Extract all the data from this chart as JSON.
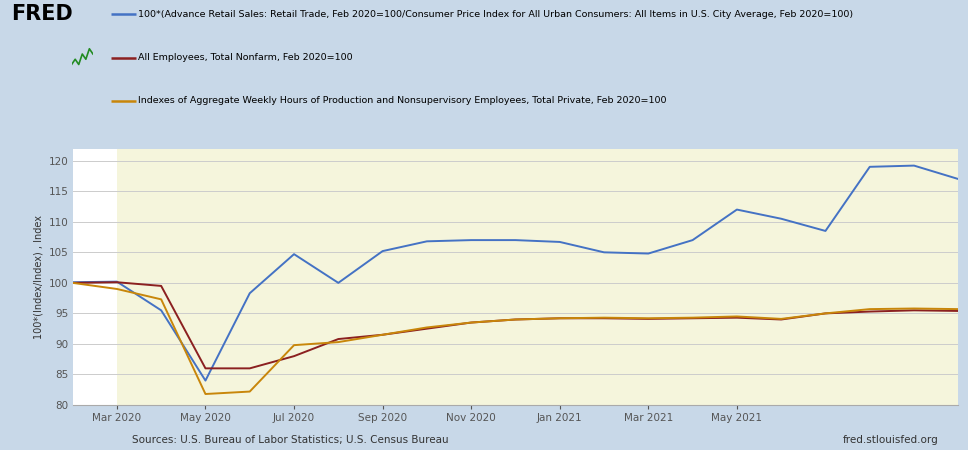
{
  "background_color": "#c8d8e8",
  "plot_bg_white": "#ffffff",
  "plot_bg_yellow": "#f5f5dc",
  "ylabel": "100*(Index/Index) , Index",
  "ylim": [
    80,
    122
  ],
  "yticks": [
    80,
    85,
    90,
    95,
    100,
    105,
    110,
    115,
    120
  ],
  "source_text": "Sources: U.S. Bureau of Labor Statistics; U.S. Census Bureau",
  "website_text": "fred.stlouisfed.org",
  "legend_line1": "100*(Advance Retail Sales: Retail Trade, Feb 2020=100/Consumer Price Index for All Urban Consumers: All Items in U.S. City Average, Feb 2020=100)",
  "legend_line2": "All Employees, Total Nonfarm, Feb 2020=100",
  "legend_line3": "Indexes of Aggregate Weekly Hours of Production and Nonsupervisory Employees, Total Private, Feb 2020=100",
  "line_colors": [
    "#4472c4",
    "#8b2020",
    "#c8860a"
  ],
  "x_tick_labels": [
    "Mar 2020",
    "May 2020",
    "Jul 2020",
    "Sep 2020",
    "Nov 2020",
    "Jan 2021",
    "Mar 2021",
    "May 2021"
  ],
  "xtick_positions": [
    1,
    3,
    5,
    7,
    9,
    11,
    13,
    15
  ],
  "blue_series": [
    100.1,
    100.2,
    95.5,
    84.0,
    98.3,
    104.7,
    100.0,
    105.2,
    106.8,
    107.0,
    107.0,
    106.7,
    105.0,
    104.8,
    107.0,
    112.0,
    110.5,
    108.5,
    119.0,
    119.2,
    117.0
  ],
  "red_series": [
    100.0,
    100.1,
    99.5,
    86.0,
    86.0,
    88.0,
    90.8,
    91.5,
    92.5,
    93.5,
    94.0,
    94.2,
    94.2,
    94.1,
    94.2,
    94.3,
    94.0,
    95.0,
    95.3,
    95.5,
    95.4
  ],
  "orange_series": [
    100.0,
    99.0,
    97.3,
    81.8,
    82.2,
    89.8,
    90.3,
    91.5,
    92.7,
    93.5,
    94.0,
    94.2,
    94.3,
    94.2,
    94.3,
    94.5,
    94.1,
    95.0,
    95.7,
    95.8,
    95.7
  ],
  "n_points": 21,
  "shading_start_index": 1,
  "grid_color": "#cccccc",
  "tick_color": "#555555",
  "spine_color": "#aaaaaa"
}
